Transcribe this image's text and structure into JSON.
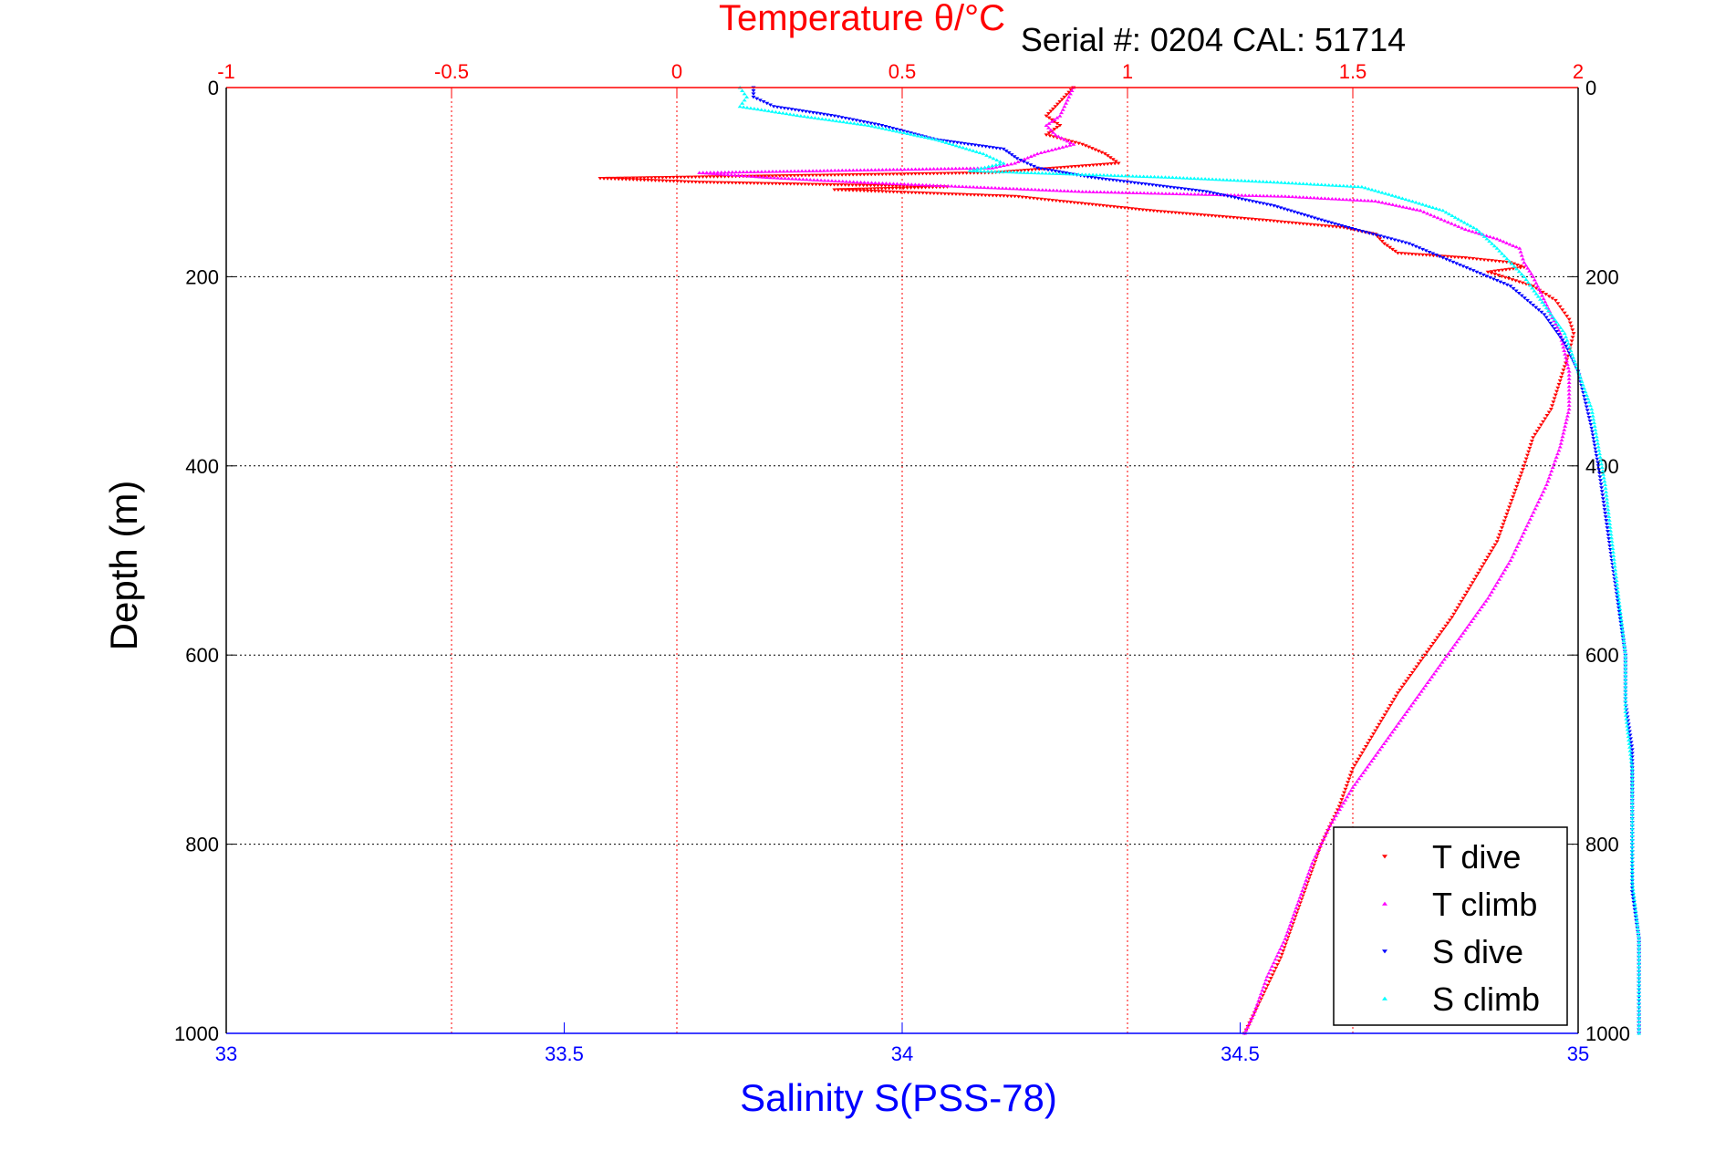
{
  "chart_data": {
    "type": "scatter",
    "title": "Temperature θ/°C",
    "annotation": "Serial #: 0204  CAL: 51714",
    "ylabel": "Depth (m)",
    "xlabel_bottom": "Salinity S(PSS-78)",
    "xlabel_top": "Temperature θ/°C",
    "y_reversed": true,
    "ylim": [
      0,
      1000
    ],
    "y_ticks": [
      "0",
      "200",
      "400",
      "600",
      "800",
      "1000"
    ],
    "xlim_temperature": [
      -1,
      2
    ],
    "temperature_ticks": [
      "-1",
      "-0.5",
      "0",
      "0.5",
      "1",
      "1.5",
      "2"
    ],
    "xlim_salinity": [
      33,
      35
    ],
    "salinity_ticks": [
      "33",
      "33.5",
      "34",
      "34.5",
      "35"
    ],
    "grid": true,
    "legend_position": "bottom-right",
    "colors": {
      "temperature_axis": "#ff0000",
      "salinity_axis": "#0000ff",
      "grid": "#000000"
    },
    "series": [
      {
        "name": "T dive",
        "axis": "temperature",
        "color": "#ff0000",
        "marker": "triangle-down",
        "points": [
          [
            0.88,
            0
          ],
          [
            0.86,
            10
          ],
          [
            0.84,
            20
          ],
          [
            0.82,
            30
          ],
          [
            0.85,
            40
          ],
          [
            0.82,
            50
          ],
          [
            0.9,
            60
          ],
          [
            0.95,
            70
          ],
          [
            0.98,
            80
          ],
          [
            0.7,
            90
          ],
          [
            -0.17,
            96
          ],
          [
            0.05,
            100
          ],
          [
            0.6,
            105
          ],
          [
            0.35,
            108
          ],
          [
            0.75,
            115
          ],
          [
            0.85,
            120
          ],
          [
            1.05,
            130
          ],
          [
            1.3,
            140
          ],
          [
            1.48,
            148
          ],
          [
            1.55,
            155
          ],
          [
            1.57,
            165
          ],
          [
            1.6,
            175
          ],
          [
            1.75,
            180
          ],
          [
            1.85,
            185
          ],
          [
            1.88,
            190
          ],
          [
            1.8,
            195
          ],
          [
            1.9,
            210
          ],
          [
            1.95,
            225
          ],
          [
            1.98,
            245
          ],
          [
            1.99,
            260
          ],
          [
            1.98,
            280
          ],
          [
            1.96,
            310
          ],
          [
            1.94,
            340
          ],
          [
            1.9,
            370
          ],
          [
            1.88,
            400
          ],
          [
            1.85,
            440
          ],
          [
            1.82,
            480
          ],
          [
            1.77,
            520
          ],
          [
            1.72,
            560
          ],
          [
            1.66,
            600
          ],
          [
            1.6,
            640
          ],
          [
            1.55,
            680
          ],
          [
            1.5,
            720
          ],
          [
            1.47,
            760
          ],
          [
            1.43,
            800
          ],
          [
            1.4,
            840
          ],
          [
            1.37,
            880
          ],
          [
            1.34,
            920
          ],
          [
            1.3,
            960
          ],
          [
            1.26,
            1000
          ]
        ]
      },
      {
        "name": "T climb",
        "axis": "temperature",
        "color": "#ff00ff",
        "marker": "triangle-up",
        "points": [
          [
            0.88,
            0
          ],
          [
            0.87,
            10
          ],
          [
            0.86,
            20
          ],
          [
            0.85,
            30
          ],
          [
            0.82,
            40
          ],
          [
            0.84,
            50
          ],
          [
            0.88,
            60
          ],
          [
            0.8,
            70
          ],
          [
            0.75,
            80
          ],
          [
            0.7,
            85
          ],
          [
            0.05,
            90
          ],
          [
            0.2,
            95
          ],
          [
            0.4,
            100
          ],
          [
            0.65,
            105
          ],
          [
            0.9,
            110
          ],
          [
            1.35,
            115
          ],
          [
            1.55,
            120
          ],
          [
            1.65,
            130
          ],
          [
            1.75,
            150
          ],
          [
            1.82,
            160
          ],
          [
            1.87,
            170
          ],
          [
            1.88,
            185
          ],
          [
            1.9,
            200
          ],
          [
            1.93,
            230
          ],
          [
            1.96,
            260
          ],
          [
            1.98,
            300
          ],
          [
            1.98,
            340
          ],
          [
            1.96,
            380
          ],
          [
            1.93,
            420
          ],
          [
            1.89,
            460
          ],
          [
            1.85,
            500
          ],
          [
            1.8,
            540
          ],
          [
            1.74,
            580
          ],
          [
            1.68,
            620
          ],
          [
            1.62,
            660
          ],
          [
            1.56,
            700
          ],
          [
            1.5,
            740
          ],
          [
            1.45,
            780
          ],
          [
            1.41,
            820
          ],
          [
            1.38,
            860
          ],
          [
            1.35,
            900
          ],
          [
            1.31,
            940
          ],
          [
            1.28,
            980
          ],
          [
            1.26,
            1000
          ]
        ]
      },
      {
        "name": "S dive",
        "axis": "salinity",
        "color": "#0000ff",
        "marker": "triangle-down",
        "points": [
          [
            33.78,
            0
          ],
          [
            33.78,
            10
          ],
          [
            33.81,
            20
          ],
          [
            33.9,
            30
          ],
          [
            33.97,
            40
          ],
          [
            34.05,
            55
          ],
          [
            34.15,
            65
          ],
          [
            34.17,
            75
          ],
          [
            34.2,
            85
          ],
          [
            34.28,
            95
          ],
          [
            34.45,
            110
          ],
          [
            34.55,
            125
          ],
          [
            34.62,
            140
          ],
          [
            34.67,
            150
          ],
          [
            34.75,
            165
          ],
          [
            34.8,
            180
          ],
          [
            34.85,
            195
          ],
          [
            34.9,
            210
          ],
          [
            34.95,
            240
          ],
          [
            34.98,
            270
          ],
          [
            35.0,
            300
          ],
          [
            35.01,
            330
          ],
          [
            35.02,
            360
          ],
          [
            35.03,
            400
          ],
          [
            35.04,
            450
          ],
          [
            35.05,
            500
          ],
          [
            35.06,
            550
          ],
          [
            35.07,
            600
          ],
          [
            35.07,
            650
          ],
          [
            35.08,
            700
          ],
          [
            35.08,
            750
          ],
          [
            35.08,
            800
          ],
          [
            35.08,
            850
          ],
          [
            35.09,
            900
          ],
          [
            35.09,
            950
          ],
          [
            35.09,
            1000
          ]
        ]
      },
      {
        "name": "S climb",
        "axis": "salinity",
        "color": "#00ffff",
        "marker": "triangle-up",
        "points": [
          [
            33.76,
            0
          ],
          [
            33.77,
            10
          ],
          [
            33.76,
            20
          ],
          [
            33.85,
            30
          ],
          [
            33.95,
            40
          ],
          [
            34.05,
            55
          ],
          [
            34.12,
            70
          ],
          [
            34.15,
            80
          ],
          [
            34.1,
            88
          ],
          [
            34.4,
            95
          ],
          [
            34.55,
            100
          ],
          [
            34.68,
            105
          ],
          [
            34.73,
            115
          ],
          [
            34.8,
            130
          ],
          [
            34.85,
            150
          ],
          [
            34.88,
            170
          ],
          [
            34.92,
            200
          ],
          [
            34.95,
            230
          ],
          [
            34.98,
            260
          ],
          [
            35.0,
            300
          ],
          [
            35.02,
            340
          ],
          [
            35.03,
            380
          ],
          [
            35.04,
            420
          ],
          [
            35.05,
            480
          ],
          [
            35.06,
            540
          ],
          [
            35.07,
            600
          ],
          [
            35.07,
            660
          ],
          [
            35.08,
            720
          ],
          [
            35.08,
            780
          ],
          [
            35.08,
            840
          ],
          [
            35.09,
            900
          ],
          [
            35.09,
            960
          ],
          [
            35.09,
            1000
          ]
        ]
      }
    ]
  }
}
